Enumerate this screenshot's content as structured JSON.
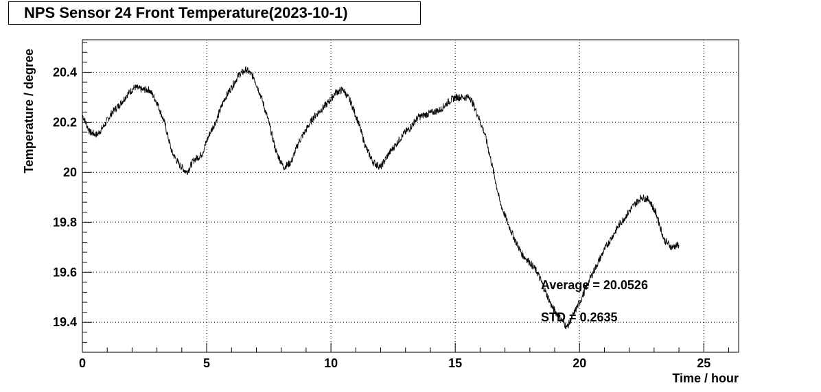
{
  "chart_data": {
    "type": "line",
    "title": "NPS Sensor 24 Front Temperature(2023-10-1)",
    "xlabel": "Time / hour",
    "ylabel": "Temperature / degree",
    "xlim": [
      0,
      26.4
    ],
    "ylim": [
      19.28,
      20.53
    ],
    "x_ticks": [
      0,
      5,
      10,
      15,
      20,
      25
    ],
    "y_ticks": [
      19.4,
      19.6,
      19.8,
      20,
      20.2,
      20.4
    ],
    "x_tick_labels": [
      "0",
      "5",
      "10",
      "15",
      "20",
      "25"
    ],
    "y_tick_labels": [
      "19.4",
      "19.6",
      "19.8",
      "20",
      "20.2",
      "20.4"
    ],
    "grid": true,
    "annotations": [
      "Average = 20.0526",
      "STD = 0.2635"
    ],
    "series": [
      {
        "color": "#000000",
        "x": [
          0,
          0.3,
          0.6,
          0.9,
          1.2,
          1.5,
          1.8,
          2.1,
          2.4,
          2.7,
          3.0,
          3.3,
          3.6,
          3.9,
          4.2,
          4.5,
          4.8,
          5.1,
          5.4,
          5.7,
          6.0,
          6.3,
          6.6,
          6.9,
          7.2,
          7.5,
          7.8,
          8.1,
          8.4,
          8.7,
          9.0,
          9.3,
          9.6,
          9.9,
          10.2,
          10.5,
          10.8,
          11.1,
          11.4,
          11.7,
          12.0,
          12.3,
          12.6,
          12.9,
          13.2,
          13.5,
          13.8,
          14.1,
          14.4,
          14.7,
          15.0,
          15.3,
          15.6,
          15.9,
          16.2,
          16.5,
          16.8,
          17.1,
          17.4,
          17.7,
          18.0,
          18.3,
          18.6,
          18.9,
          19.2,
          19.5,
          19.8,
          20.1,
          20.4,
          20.7,
          21.0,
          21.3,
          21.6,
          21.9,
          22.2,
          22.5,
          22.8,
          23.1,
          23.4,
          23.7,
          24.0
        ],
        "y": [
          20.23,
          20.16,
          20.15,
          20.19,
          20.24,
          20.27,
          20.31,
          20.34,
          20.33,
          20.33,
          20.28,
          20.2,
          20.08,
          20.03,
          20.0,
          20.05,
          20.07,
          20.15,
          20.21,
          20.29,
          20.34,
          20.39,
          20.41,
          20.38,
          20.3,
          20.2,
          20.08,
          20.02,
          20.04,
          20.12,
          20.17,
          20.22,
          20.25,
          20.28,
          20.32,
          20.33,
          20.28,
          20.2,
          20.1,
          20.04,
          20.02,
          20.07,
          20.11,
          20.15,
          20.18,
          20.22,
          20.23,
          20.24,
          20.25,
          20.28,
          20.3,
          20.3,
          20.3,
          20.23,
          20.15,
          20.02,
          19.88,
          19.8,
          19.73,
          19.67,
          19.64,
          19.6,
          19.53,
          19.46,
          19.42,
          19.38,
          19.44,
          19.5,
          19.57,
          19.63,
          19.69,
          19.74,
          19.79,
          19.83,
          19.87,
          19.9,
          19.89,
          19.83,
          19.73,
          19.7,
          19.71
        ]
      }
    ]
  }
}
